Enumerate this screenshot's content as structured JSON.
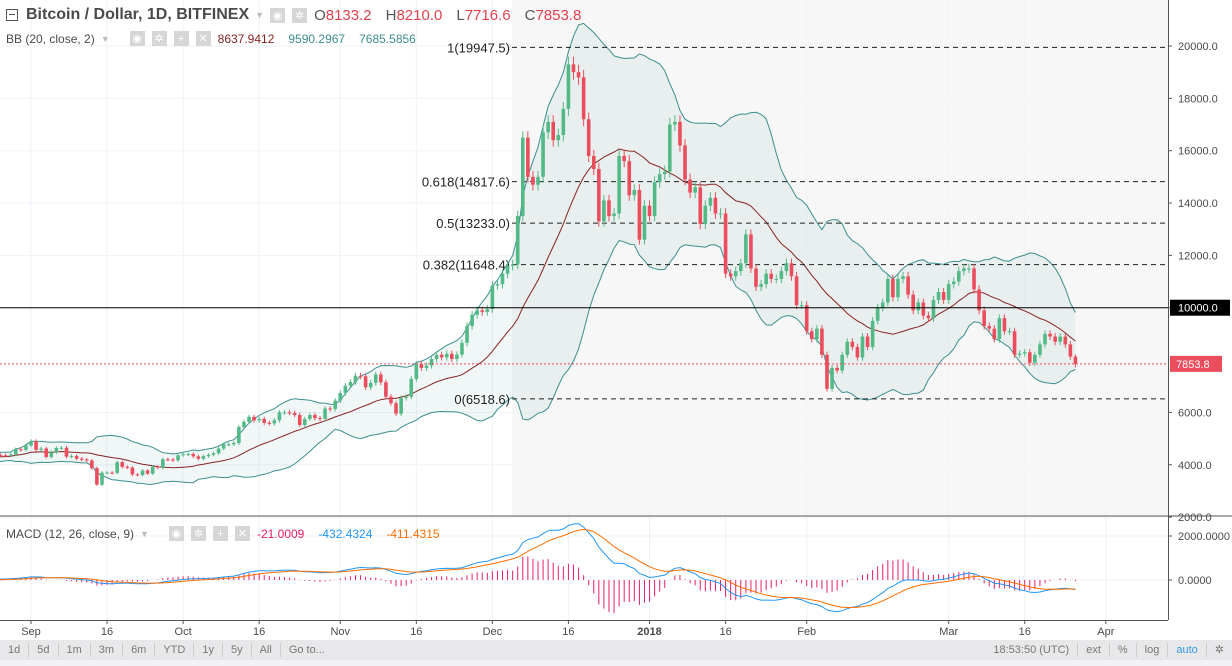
{
  "header": {
    "symbol_title": "Bitcoin / Dollar, 1D, BITFINEX",
    "open_label": "O",
    "open": "8133.2",
    "high_label": "H",
    "high": "8210.0",
    "low_label": "L",
    "low": "7716.6",
    "close_label": "C",
    "close": "7853.8"
  },
  "bb_legend": {
    "title": "BB (20, close, 2)",
    "basis": "8637.9412",
    "upper": "9590.2967",
    "lower": "7685.5856"
  },
  "macd_legend": {
    "title": "MACD (12, 26, close, 9)",
    "hist": "-21.0009",
    "macd": "-432.4324",
    "signal": "-411.4315"
  },
  "toolbar": {
    "ranges": [
      "1d",
      "5d",
      "1m",
      "3m",
      "6m",
      "YTD",
      "1y",
      "5y",
      "All",
      "Go to..."
    ],
    "time": "18:53:50 (UTC)",
    "ext": "ext",
    "percent": "%",
    "log": "log",
    "auto": "auto",
    "settings_icon": "gear-icon"
  },
  "colors": {
    "up": "#53b987",
    "down": "#eb4d5c",
    "bb_band": "#3b8e8e",
    "bb_basis": "#872323",
    "macd": "#2196f3",
    "signal": "#ff6d00",
    "hist": "#e91e63"
  },
  "chart_data": {
    "type": "candlestick",
    "start_date": "2017-08-23",
    "last_candle": {
      "open": 8133.2,
      "high": 8210.0,
      "low": 7716.6,
      "close": 7853.8
    },
    "closes": [
      4150,
      4330,
      4370,
      4360,
      4350,
      4390,
      4590,
      4570,
      4740,
      4900,
      4570,
      4620,
      4300,
      4480,
      4640,
      4650,
      4310,
      4330,
      4230,
      4200,
      4160,
      3870,
      3240,
      3700,
      3700,
      3690,
      4100,
      3920,
      3890,
      3630,
      3610,
      3780,
      3660,
      3930,
      3890,
      4210,
      4200,
      4170,
      4360,
      4400,
      4410,
      4320,
      4230,
      4330,
      4380,
      4440,
      4620,
      4780,
      4780,
      4830,
      5440,
      5640,
      5830,
      5700,
      5750,
      5600,
      5580,
      5700,
      6000,
      6000,
      5980,
      5900,
      5520,
      5750,
      5900,
      5780,
      5750,
      6150,
      6130,
      6450,
      6740,
      7020,
      7160,
      7400,
      7380,
      6960,
      7130,
      7450,
      7150,
      6600,
      6350,
      5950,
      6550,
      6600,
      7280,
      7850,
      7700,
      7790,
      8040,
      8200,
      8100,
      8240,
      8040,
      8210,
      8660,
      9300,
      9730,
      9900,
      9840,
      9950,
      10850,
      10900,
      11300,
      11600,
      11650,
      13500,
      16500,
      15000,
      14700,
      15000,
      16700,
      17100,
      16400,
      16600,
      17600,
      19300,
      19000,
      18800,
      17200,
      15800,
      15300,
      13300,
      14100,
      13500,
      13600,
      15800,
      15600,
      14300,
      14500,
      12600,
      13900,
      13500,
      14800,
      15100,
      15200,
      17000,
      17100,
      16200,
      14900,
      14400,
      14600,
      13200,
      13900,
      14200,
      13600,
      13600,
      11300,
      11200,
      11400,
      11700,
      12800,
      11500,
      10800,
      10900,
      11300,
      11100,
      11100,
      11400,
      11700,
      11200,
      10100,
      10100,
      9100,
      8800,
      9200,
      8200,
      6900,
      7700,
      7600,
      8200,
      8700,
      8500,
      8100,
      8900,
      8500,
      9500,
      10000,
      10200,
      11100,
      10400,
      11100,
      11200,
      10500,
      9900,
      10200,
      9700,
      9600,
      10300,
      10600,
      10300,
      10900,
      11000,
      11400,
      11500,
      11500,
      10700,
      9900,
      9300,
      9200,
      8800,
      9600,
      9100,
      9100,
      8200,
      8250,
      8300,
      7900,
      8200,
      8600,
      9000,
      8900,
      8700,
      8900,
      8600,
      8133.2,
      7853.8
    ],
    "price_axis": {
      "ticks": [
        "20000.0",
        "18000.0",
        "16000.0",
        "14000.0",
        "12000.0",
        "10000.0",
        "6000.0",
        "4000.0",
        "2000.0"
      ],
      "tick_values": [
        20000,
        18000,
        16000,
        14000,
        12000,
        10000,
        6000,
        4000,
        2000
      ],
      "range": [
        1000,
        21800
      ]
    },
    "time_axis": {
      "labels": [
        "Sep",
        "16",
        "Oct",
        "16",
        "Nov",
        "16",
        "Dec",
        "16",
        "2018",
        "16",
        "Feb",
        "Mar",
        "16",
        "Apr"
      ],
      "day_offsets": [
        9,
        24,
        39,
        54,
        70,
        85,
        100,
        115,
        131,
        146,
        162,
        190,
        205,
        221
      ]
    },
    "horizontal_line": {
      "value": 10000,
      "label": "10000.0"
    },
    "last_price": {
      "value": 7853.8,
      "label": "7853.8"
    },
    "fib_levels": [
      {
        "label": "1(19947.5)",
        "value": 19947.5
      },
      {
        "label": "0.618(14817.6)",
        "value": 14817.6
      },
      {
        "label": "0.5(13233.0)",
        "value": 13233.0
      },
      {
        "label": "0.382(11648.4)",
        "value": 11648.4
      },
      {
        "label": "0(6518.6)",
        "value": 6518.6
      }
    ],
    "indicators": {
      "bb": {
        "length": 20,
        "mult": 2
      },
      "macd": {
        "fast": 12,
        "slow": 26,
        "signal": 9
      }
    },
    "macd_axis": {
      "ticks": [
        "2000.0000",
        "0.0000"
      ],
      "tick_values": [
        2000,
        0
      ]
    }
  }
}
